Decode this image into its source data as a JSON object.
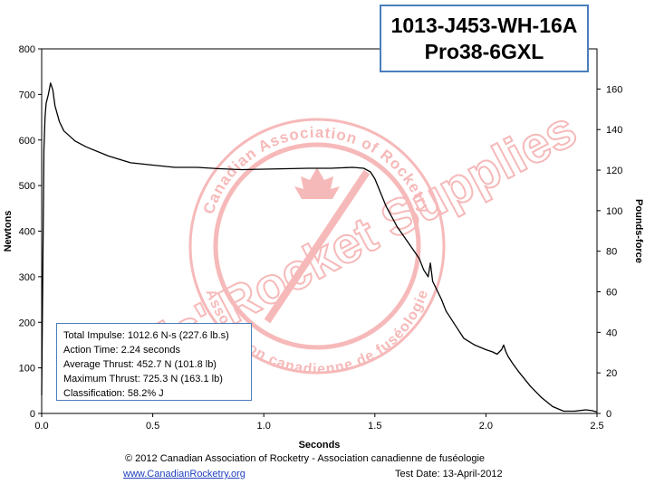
{
  "title": {
    "line1": "1013-J453-WH-16A",
    "line2": "Pro38-6GXL"
  },
  "stats": {
    "total_impulse": "Total Impulse: 1012.6 N-s (227.6 lb.s)",
    "action_time": "Action Time: 2.24 seconds",
    "average_thrust": "Average Thrust: 452.7 N (101.8 lb)",
    "maximum_thrust": "Maximum Thrust: 725.3 N (163.1 lb)",
    "classification": "Classification: 58.2% J"
  },
  "footer": {
    "copyright": "© 2012 Canadian Association of Rocketry - Association canadienne de fuséologie",
    "website": "www.CanadianRocketry.org",
    "test_date": "Test  Date: 13-April-2012"
  },
  "watermark": {
    "main_text": "Chris' Rocket Supplies",
    "seal_top": "Canadian Association of Rocketry",
    "seal_bottom": "Association canadienne de fuséologie",
    "color": "#f08080"
  },
  "chart_data": {
    "type": "line",
    "xlabel": "Seconds",
    "ylabel": "Newtons",
    "y2label": "Pounds-force",
    "xlim": [
      0,
      2.5
    ],
    "ylim": [
      0,
      800
    ],
    "y2lim": [
      0,
      179.8
    ],
    "x_ticks": [
      "0.0",
      "0.5",
      "1.0",
      "1.5",
      "2.0",
      "2.5"
    ],
    "y_ticks": [
      "0",
      "100",
      "200",
      "300",
      "400",
      "500",
      "600",
      "700",
      "800"
    ],
    "y2_ticks": [
      "0",
      "20",
      "40",
      "60",
      "80",
      "100",
      "120",
      "140",
      "160"
    ],
    "line_color": "#000000",
    "series": [
      {
        "x": [
          0,
          0.005,
          0.01,
          0.015,
          0.02,
          0.03,
          0.04,
          0.05,
          0.06,
          0.08,
          0.1,
          0.15,
          0.2,
          0.3,
          0.4,
          0.5,
          0.6,
          0.7,
          0.8,
          0.9,
          1.0,
          1.1,
          1.2,
          1.3,
          1.35,
          1.4,
          1.45,
          1.48,
          1.5,
          1.55,
          1.6,
          1.65,
          1.7,
          1.72,
          1.74,
          1.75,
          1.76,
          1.78,
          1.8,
          1.82,
          1.84,
          1.86,
          1.88,
          1.9,
          1.95,
          2.0,
          2.03,
          2.05,
          2.07,
          2.08,
          2.09,
          2.1,
          2.12,
          2.15,
          2.2,
          2.25,
          2.3,
          2.35,
          2.4,
          2.45,
          2.48,
          2.5
        ],
        "y": [
          40,
          300,
          580,
          650,
          680,
          700,
          725,
          710,
          675,
          640,
          620,
          598,
          585,
          565,
          550,
          545,
          540,
          540,
          537,
          535,
          536,
          537,
          538,
          538,
          539,
          540,
          538,
          530,
          515,
          455,
          410,
          375,
          340,
          315,
          300,
          330,
          290,
          270,
          250,
          225,
          210,
          195,
          180,
          165,
          150,
          140,
          135,
          130,
          140,
          150,
          135,
          125,
          110,
          90,
          60,
          35,
          15,
          5,
          5,
          8,
          6,
          3
        ]
      }
    ]
  }
}
